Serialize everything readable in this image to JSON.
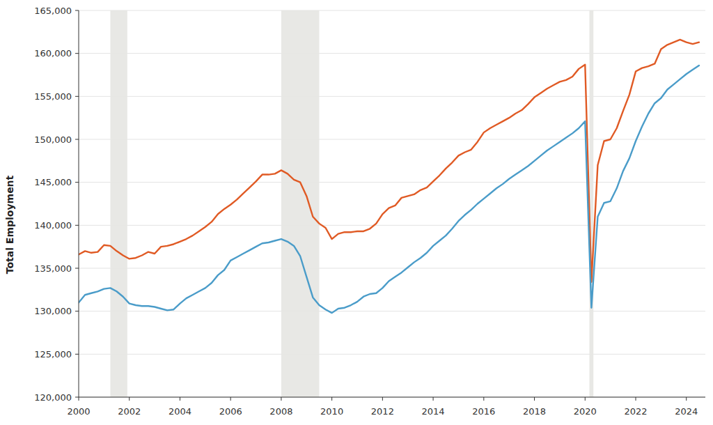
{
  "chart_data": {
    "type": "line",
    "y_label": "Total Employment",
    "grid": true,
    "xlim": [
      2000,
      2024.75
    ],
    "xticks": [
      2000,
      2002,
      2004,
      2006,
      2008,
      2010,
      2012,
      2014,
      2016,
      2018,
      2020,
      2022,
      2024
    ],
    "ylim": [
      120000,
      165000
    ],
    "yticks": [
      {
        "value": 120000,
        "label": "120,000"
      },
      {
        "value": 125000,
        "label": "125,000"
      },
      {
        "value": 130000,
        "label": "130,000"
      },
      {
        "value": 135000,
        "label": "135,000"
      },
      {
        "value": 140000,
        "label": "140,000"
      },
      {
        "value": 145000,
        "label": "145,000"
      },
      {
        "value": 150000,
        "label": "150,000"
      },
      {
        "value": 155000,
        "label": "155,000"
      },
      {
        "value": 160000,
        "label": "160,000"
      },
      {
        "value": 165000,
        "label": "165,000"
      }
    ],
    "shaded_periods": [
      [
        2001.25,
        2001.92
      ],
      [
        2008.0,
        2009.5
      ],
      [
        2020.17,
        2020.33
      ]
    ],
    "x": [
      2000,
      2000.25,
      2000.5,
      2000.75,
      2001,
      2001.25,
      2001.5,
      2001.75,
      2002,
      2002.25,
      2002.5,
      2002.75,
      2003,
      2003.25,
      2003.5,
      2003.75,
      2004,
      2004.25,
      2004.5,
      2004.75,
      2005,
      2005.25,
      2005.5,
      2005.75,
      2006,
      2006.25,
      2006.5,
      2006.75,
      2007,
      2007.25,
      2007.5,
      2007.75,
      2008,
      2008.25,
      2008.5,
      2008.75,
      2009,
      2009.25,
      2009.5,
      2009.75,
      2010,
      2010.25,
      2010.5,
      2010.75,
      2011,
      2011.25,
      2011.5,
      2011.75,
      2012,
      2012.25,
      2012.5,
      2012.75,
      2013,
      2013.25,
      2013.5,
      2013.75,
      2014,
      2014.25,
      2014.5,
      2014.75,
      2015,
      2015.25,
      2015.5,
      2015.75,
      2016,
      2016.25,
      2016.5,
      2016.75,
      2017,
      2017.25,
      2017.5,
      2017.75,
      2018,
      2018.25,
      2018.5,
      2018.75,
      2019,
      2019.25,
      2019.5,
      2019.75,
      2020,
      2020.25,
      2020.5,
      2020.75,
      2021,
      2021.25,
      2021.5,
      2021.75,
      2022,
      2022.25,
      2022.5,
      2022.75,
      2023,
      2023.25,
      2023.5,
      2023.75,
      2024,
      2024.25,
      2024.5
    ],
    "series": [
      {
        "color": "#e05a24",
        "values": [
          136600,
          137000,
          136800,
          136900,
          137700,
          137600,
          137000,
          136500,
          136100,
          136200,
          136500,
          136900,
          136700,
          137500,
          137600,
          137800,
          138100,
          138400,
          138800,
          139300,
          139800,
          140400,
          141300,
          141900,
          142400,
          143000,
          143700,
          144400,
          145100,
          145900,
          145900,
          146000,
          146400,
          146000,
          145300,
          145000,
          143400,
          141000,
          140200,
          139700,
          138400,
          139000,
          139200,
          139200,
          139300,
          139300,
          139600,
          140200,
          141300,
          142000,
          142300,
          143200,
          143400,
          143600,
          144100,
          144400,
          145100,
          145800,
          146600,
          147300,
          148100,
          148500,
          148800,
          149700,
          150800,
          151300,
          151700,
          152100,
          152500,
          153000,
          153400,
          154100,
          154900,
          155400,
          155900,
          156300,
          156700,
          156900,
          157300,
          158200,
          158700,
          133400,
          147000,
          149800,
          150000,
          151300,
          153300,
          155200,
          157900,
          158300,
          158500,
          158800,
          160500,
          161000,
          161300,
          161600,
          161300,
          161100,
          161300
        ]
      },
      {
        "color": "#4a9cc9",
        "values": [
          131000,
          131900,
          132100,
          132300,
          132600,
          132700,
          132300,
          131700,
          130900,
          130700,
          130600,
          130600,
          130500,
          130300,
          130100,
          130200,
          130900,
          131500,
          131900,
          132300,
          132700,
          133300,
          134200,
          134800,
          135900,
          136300,
          136700,
          137100,
          137500,
          137900,
          138000,
          138200,
          138400,
          138100,
          137600,
          136400,
          134000,
          131600,
          130700,
          130200,
          129800,
          130300,
          130400,
          130700,
          131100,
          131700,
          132000,
          132100,
          132700,
          133500,
          134000,
          134500,
          135100,
          135700,
          136200,
          136800,
          137600,
          138200,
          138800,
          139600,
          140500,
          141200,
          141800,
          142500,
          143100,
          143700,
          144300,
          144800,
          145400,
          145900,
          146400,
          146900,
          147500,
          148100,
          148700,
          149200,
          149700,
          150200,
          150700,
          151300,
          152100,
          130400,
          141000,
          142600,
          142800,
          144300,
          146300,
          147800,
          149800,
          151500,
          153000,
          154200,
          154800,
          155800,
          156400,
          157000,
          157600,
          158100,
          158600
        ]
      }
    ]
  }
}
